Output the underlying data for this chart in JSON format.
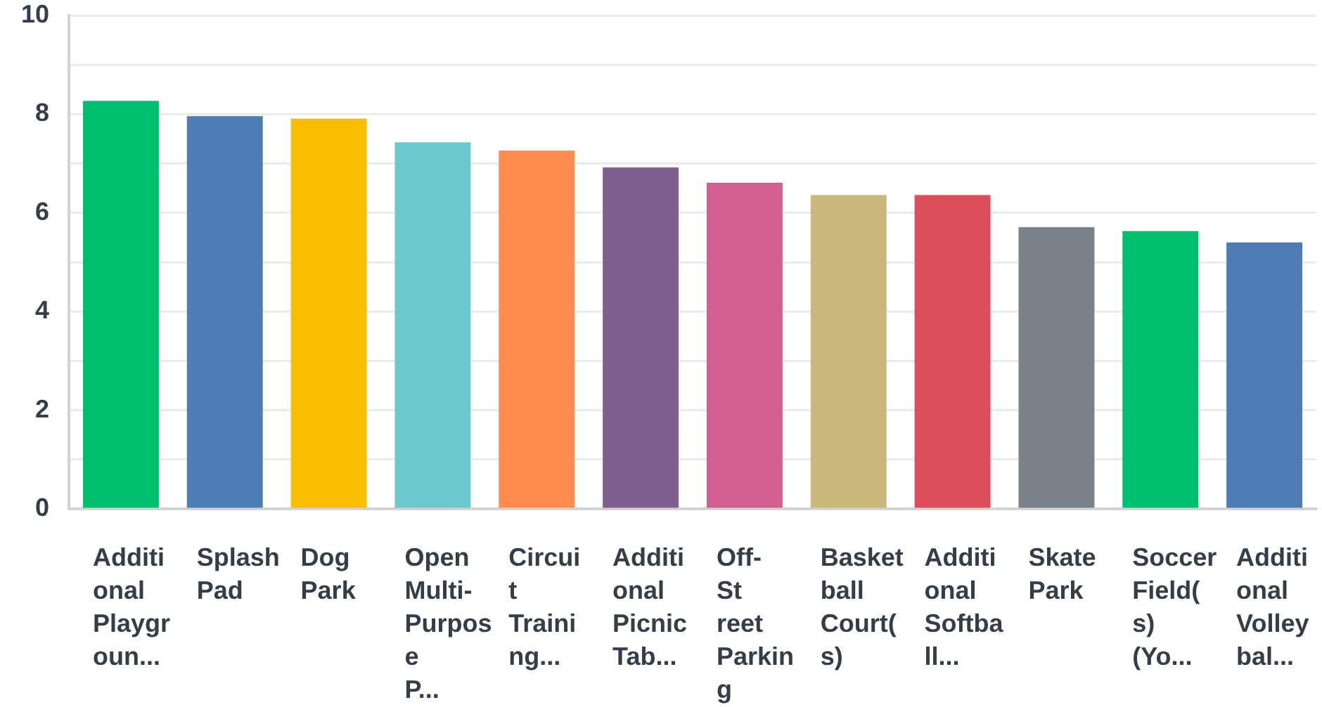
{
  "chart_data": {
    "type": "bar",
    "categories": [
      "Additional Playgroun...",
      "Splash Pad",
      "Dog Park",
      "Open Multi-Purpose P...",
      "Circuit Training...",
      "Additional Picnic Tab...",
      "Off-Street Parking",
      "Basketball Court(s)",
      "Additional Softball...",
      "Skate Park",
      "Soccer Field(s) (Yo...",
      "Additional Volleybal..."
    ],
    "values": [
      8.27,
      7.96,
      7.91,
      7.43,
      7.26,
      6.92,
      6.61,
      6.36,
      6.36,
      5.71,
      5.63,
      5.4
    ],
    "colors": [
      "#00bf6f",
      "#507cb6",
      "#f9be00",
      "#6bc8cd",
      "#ff8b4f",
      "#7f5f90",
      "#d25f90",
      "#c9b77b",
      "#dc4e5c",
      "#7a8188",
      "#00bf6f",
      "#507cb6"
    ],
    "ylim": [
      0,
      10
    ],
    "yticks": [
      0,
      {
        "value": 1,
        "label": null
      },
      2,
      {
        "value": 3,
        "label": null
      },
      4,
      {
        "value": 5,
        "label": null
      },
      6,
      {
        "value": 7,
        "label": null
      },
      8,
      {
        "value": 9,
        "label": null
      },
      10
    ],
    "grid": "y"
  }
}
